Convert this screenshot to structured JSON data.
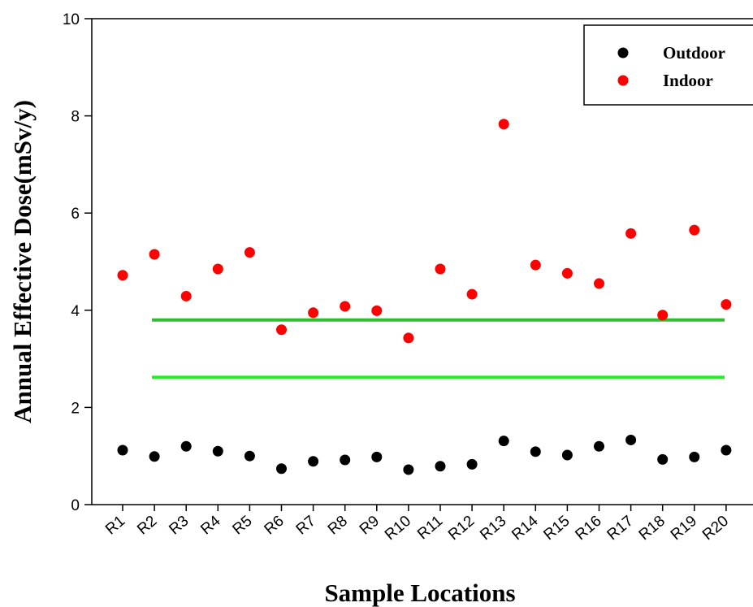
{
  "chart_data": {
    "type": "scatter",
    "xlabel": "Sample Locations",
    "ylabel": "Annual Effective Dose(mSv/y)",
    "categories": [
      "R1",
      "R2",
      "R3",
      "R4",
      "R5",
      "R6",
      "R7",
      "R8",
      "R9",
      "R10",
      "R11",
      "R12",
      "R13",
      "R14",
      "R15",
      "R16",
      "R17",
      "R18",
      "R19",
      "R20"
    ],
    "ylim": [
      0,
      10
    ],
    "yticks": [
      "0",
      "2",
      "4",
      "6",
      "8",
      "10"
    ],
    "series": [
      {
        "name": "Outdoor",
        "color": "#000000",
        "values": [
          1.12,
          0.99,
          1.2,
          1.1,
          1.0,
          0.74,
          0.89,
          0.92,
          0.98,
          0.72,
          0.79,
          0.83,
          1.31,
          1.09,
          1.02,
          1.2,
          1.33,
          0.93,
          0.98,
          1.12
        ]
      },
      {
        "name": "Indoor",
        "color": "#ff0000",
        "values": [
          4.72,
          5.15,
          4.29,
          4.85,
          5.19,
          3.6,
          3.95,
          4.08,
          3.99,
          3.43,
          4.85,
          4.33,
          7.83,
          4.93,
          4.76,
          4.55,
          5.58,
          3.9,
          5.65,
          4.12
        ]
      }
    ],
    "reference_lines": [
      {
        "value": 3.8,
        "color": "#33bb33"
      },
      {
        "value": 2.62,
        "color": "#22ee22"
      }
    ],
    "legend_position": "top-right",
    "grid": false
  }
}
